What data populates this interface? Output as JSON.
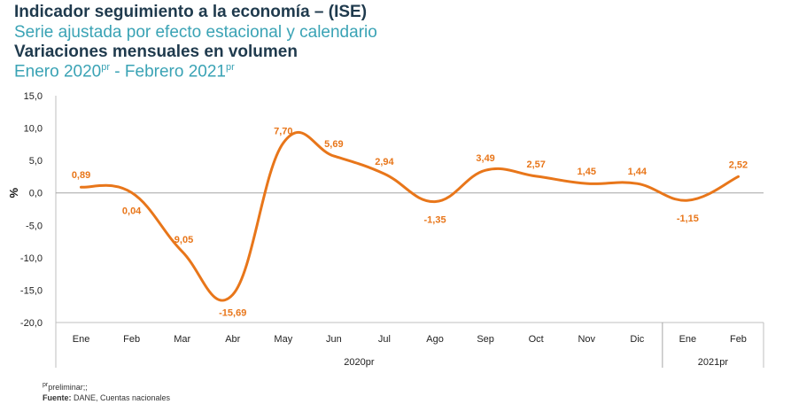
{
  "header": {
    "title": "Indicador seguimiento a la economía – (ISE)",
    "subtitle": "Serie ajustada por efecto estacional y calendario",
    "title2": "Variaciones mensuales en volumen",
    "period_start": "Enero 2020",
    "period_start_sup": "pr",
    "period_sep": " - ",
    "period_end": "Febrero 2021",
    "period_end_sup": "pr"
  },
  "chart_data": {
    "type": "line",
    "ylabel": "%",
    "ylim": [
      -20,
      15
    ],
    "yticks": [
      "15,0",
      "10,0",
      "5,0",
      "0,0",
      "-5,0",
      "-10,0",
      "-15,0",
      "-20,0"
    ],
    "ytick_values": [
      15,
      10,
      5,
      0,
      -5,
      -10,
      -15,
      -20
    ],
    "categories": [
      "Ene",
      "Feb",
      "Mar",
      "Abr",
      "May",
      "Jun",
      "Jul",
      "Ago",
      "Sep",
      "Oct",
      "Nov",
      "Dic",
      "Ene",
      "Feb"
    ],
    "groups": [
      {
        "label": "2020pr",
        "count": 12
      },
      {
        "label": "2021pr",
        "count": 2
      }
    ],
    "series": [
      {
        "color": "#e8761a",
        "values": [
          0.89,
          0.04,
          -9.05,
          -15.69,
          7.7,
          5.69,
          2.94,
          -1.35,
          3.49,
          2.57,
          1.45,
          1.44,
          -1.15,
          2.52
        ],
        "data_labels": [
          "0,89",
          "0,04",
          "-9,05",
          "-15,69",
          "7,70",
          "5,69",
          "2,94",
          "-1,35",
          "3,49",
          "2,57",
          "1,45",
          "1,44",
          "-1,15",
          "2,52"
        ]
      }
    ],
    "grid": false,
    "zero_line": true
  },
  "footnotes": {
    "note_sup": "pr",
    "note": "preliminar;;",
    "source_label": "Fuente:",
    "source": " DANE, Cuentas nacionales"
  }
}
